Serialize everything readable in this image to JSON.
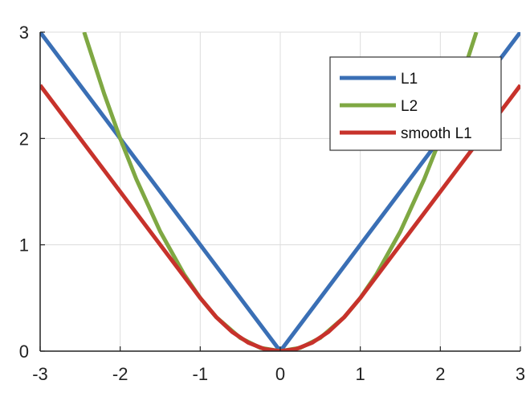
{
  "chart_data": {
    "type": "line",
    "xlim": [
      -3,
      3
    ],
    "ylim": [
      0,
      3
    ],
    "xticks": [
      "-3",
      "-2",
      "-1",
      "0",
      "1",
      "2",
      "3"
    ],
    "yticks": [
      "0",
      "1",
      "2",
      "3"
    ],
    "grid": true,
    "legend_position": "top-right",
    "series": [
      {
        "name": "L1",
        "color": "#3a6fb5",
        "x": [
          -3,
          -2,
          -1,
          0,
          1,
          2,
          3
        ],
        "y": [
          3,
          2,
          1,
          0,
          1,
          2,
          3
        ]
      },
      {
        "name": "L2",
        "color": "#7fa843",
        "x": [
          -2.45,
          -2.2,
          -2,
          -1.8,
          -1.5,
          -1.2,
          -1,
          -0.8,
          -0.5,
          -0.25,
          0,
          0.25,
          0.5,
          0.8,
          1,
          1.2,
          1.5,
          1.8,
          2,
          2.2,
          2.45
        ],
        "y": [
          3.0,
          2.42,
          2.0,
          1.62,
          1.125,
          0.72,
          0.5,
          0.32,
          0.125,
          0.031,
          0,
          0.031,
          0.125,
          0.32,
          0.5,
          0.72,
          1.125,
          1.62,
          2.0,
          2.42,
          3.0
        ]
      },
      {
        "name": "smooth L1",
        "color": "#c7322b",
        "x": [
          -3,
          -2.5,
          -2,
          -1.5,
          -1,
          -0.8,
          -0.6,
          -0.4,
          -0.2,
          0,
          0.2,
          0.4,
          0.6,
          0.8,
          1,
          1.5,
          2,
          2.5,
          3
        ],
        "y": [
          2.5,
          2.0,
          1.5,
          1.0,
          0.5,
          0.32,
          0.18,
          0.08,
          0.02,
          0,
          0.02,
          0.08,
          0.18,
          0.32,
          0.5,
          1.0,
          1.5,
          2.0,
          2.5
        ]
      }
    ]
  }
}
